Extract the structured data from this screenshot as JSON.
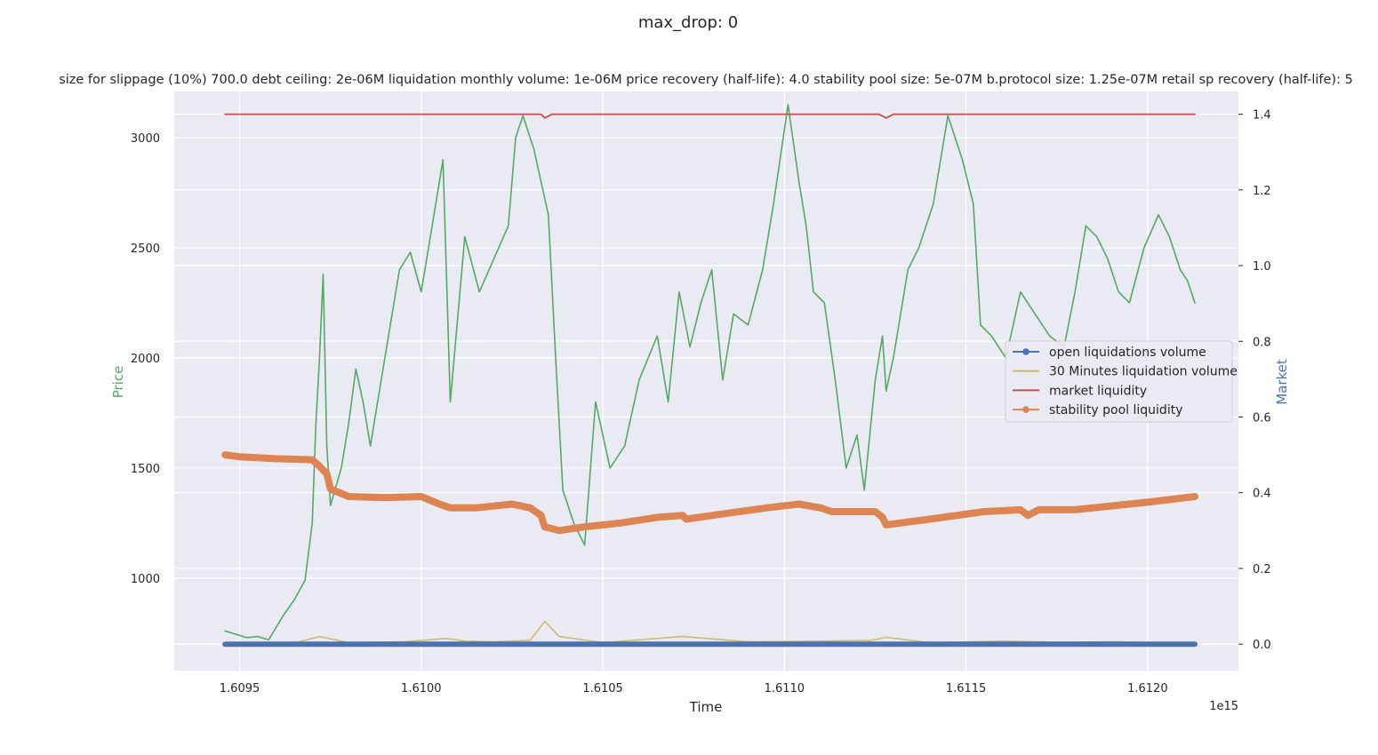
{
  "chart_data": {
    "type": "line",
    "suptitle": "max_drop: 0",
    "title": "size for slippage (10%) 700.0 debt ceiling: 2e-06M liquidation monthly volume: 1e-06M price recovery (half-life): 4.0 stability pool size: 5e-07M b.protocol size: 1.25e-07M retail sp recovery (half-life): 5",
    "xlabel": "Time",
    "x_offset_text": "1e15",
    "ylabel_left": "Price",
    "ylabel_right": "Market",
    "xlim": [
      1.60932,
      1.61225
    ],
    "ylim_left": [
      580,
      3210
    ],
    "ylim_right": [
      -0.07,
      1.46
    ],
    "x_ticks": [
      1.6095,
      1.61,
      1.6105,
      1.611,
      1.6115,
      1.612
    ],
    "x_tick_labels": [
      "1.6095",
      "1.6100",
      "1.6105",
      "1.6110",
      "1.6115",
      "1.6120"
    ],
    "y_left_ticks": [
      1000,
      1500,
      2000,
      2500,
      3000
    ],
    "y_left_tick_labels": [
      "1000",
      "1500",
      "2000",
      "2500",
      "3000"
    ],
    "y_right_ticks": [
      0.0,
      0.2,
      0.4,
      0.6,
      0.8,
      1.0,
      1.2,
      1.4
    ],
    "y_right_tick_labels": [
      "0.0",
      "0.2",
      "0.4",
      "0.6",
      "0.8",
      "1.0",
      "1.2",
      "1.4"
    ],
    "grid": true,
    "legend_placement": "center-right",
    "colors": {
      "price": "#55a868",
      "open_liq": "#4c72b0",
      "liq_30m": "#ccb974",
      "market": "#c44e52",
      "stability": "#dd8452",
      "background": "#eaeaf2",
      "grid": "#ffffff"
    },
    "legend": [
      {
        "name": "open liquidations volume",
        "color": "#4c72b0",
        "marker": true
      },
      {
        "name": "30 Minutes liquidation volume",
        "color": "#ccb974",
        "marker": false
      },
      {
        "name": "market liquidity",
        "color": "#c44e52",
        "marker": false
      },
      {
        "name": "stability pool liquidity",
        "color": "#dd8452",
        "marker": true
      }
    ],
    "series": [
      {
        "name": "price",
        "axis": "left",
        "x": [
          1.60946,
          1.60948,
          1.60952,
          1.60955,
          1.60958,
          1.60962,
          1.60965,
          1.60968,
          1.6097,
          1.60971,
          1.60972,
          1.60973,
          1.60974,
          1.60975,
          1.60978,
          1.6098,
          1.60982,
          1.60984,
          1.60986,
          1.6099,
          1.60994,
          1.60997,
          1.61,
          1.61003,
          1.61006,
          1.61008,
          1.61012,
          1.61016,
          1.6102,
          1.61024,
          1.61026,
          1.61028,
          1.61031,
          1.61035,
          1.61037,
          1.61039,
          1.61042,
          1.61045,
          1.61048,
          1.61052,
          1.61056,
          1.6106,
          1.61065,
          1.61068,
          1.61071,
          1.61074,
          1.61077,
          1.6108,
          1.61083,
          1.61086,
          1.6109,
          1.61094,
          1.61097,
          1.61101,
          1.61104,
          1.61106,
          1.61108,
          1.61111,
          1.61114,
          1.61117,
          1.6112,
          1.61122,
          1.61125,
          1.61127,
          1.61128,
          1.6113,
          1.61134,
          1.61137,
          1.61141,
          1.61145,
          1.61149,
          1.61152,
          1.61154,
          1.61157,
          1.61161,
          1.61165,
          1.61169,
          1.61173,
          1.61177,
          1.6118,
          1.61183,
          1.61186,
          1.61189,
          1.61192,
          1.61195,
          1.61199,
          1.61203,
          1.61206,
          1.61209,
          1.61211,
          1.61213
        ],
        "values": [
          760,
          750,
          730,
          735,
          720,
          830,
          900,
          990,
          1250,
          1700,
          2000,
          2380,
          1600,
          1330,
          1500,
          1700,
          1950,
          1800,
          1600,
          2000,
          2400,
          2480,
          2300,
          2600,
          2900,
          1800,
          2550,
          2300,
          2450,
          2600,
          3000,
          3100,
          2950,
          2650,
          2000,
          1400,
          1250,
          1150,
          1800,
          1500,
          1600,
          1900,
          2100,
          1800,
          2300,
          2050,
          2250,
          2400,
          1900,
          2200,
          2150,
          2400,
          2700,
          3150,
          2800,
          2600,
          2300,
          2250,
          1900,
          1500,
          1650,
          1400,
          1900,
          2100,
          1850,
          2000,
          2400,
          2500,
          2700,
          3100,
          2900,
          2700,
          2150,
          2100,
          2000,
          2300,
          2200,
          2100,
          2050,
          2300,
          2600,
          2550,
          2450,
          2300,
          2250,
          2500,
          2650,
          2550,
          2400,
          2350,
          2250
        ]
      },
      {
        "name": "open liquidations volume",
        "axis": "right",
        "x": [
          1.60946,
          1.61213
        ],
        "values": [
          0.0,
          0.0
        ]
      },
      {
        "name": "30 Minutes liquidation volume",
        "axis": "right",
        "x": [
          1.60946,
          1.60965,
          1.60972,
          1.6098,
          1.60995,
          1.61003,
          1.61007,
          1.61012,
          1.6102,
          1.6103,
          1.61034,
          1.61038,
          1.6105,
          1.61072,
          1.6109,
          1.6111,
          1.61124,
          1.61128,
          1.6114,
          1.6116,
          1.61175,
          1.61192,
          1.61213
        ],
        "values": [
          0.0,
          0.003,
          0.02,
          0.004,
          0.006,
          0.012,
          0.015,
          0.008,
          0.006,
          0.01,
          0.06,
          0.02,
          0.004,
          0.02,
          0.006,
          0.008,
          0.01,
          0.018,
          0.004,
          0.008,
          0.005,
          0.006,
          0.0
        ]
      },
      {
        "name": "market liquidity",
        "axis": "right",
        "x": [
          1.60946,
          1.61,
          1.61033,
          1.61034,
          1.61036,
          1.611,
          1.61126,
          1.61128,
          1.6113,
          1.61213
        ],
        "values": [
          1.4,
          1.4,
          1.4,
          1.39,
          1.4,
          1.4,
          1.4,
          1.39,
          1.4,
          1.4
        ]
      },
      {
        "name": "stability pool liquidity",
        "axis": "right",
        "x": [
          1.60946,
          1.6095,
          1.6096,
          1.6097,
          1.60972,
          1.60974,
          1.60975,
          1.6098,
          1.6099,
          1.61,
          1.61005,
          1.61008,
          1.61015,
          1.61025,
          1.6103,
          1.61033,
          1.61034,
          1.61038,
          1.61045,
          1.61055,
          1.61065,
          1.61072,
          1.61073,
          1.6108,
          1.61095,
          1.61104,
          1.6111,
          1.61113,
          1.61125,
          1.61127,
          1.61128,
          1.6114,
          1.61155,
          1.61165,
          1.61167,
          1.6117,
          1.6118,
          1.6119,
          1.612,
          1.61213
        ],
        "values": [
          0.5,
          0.495,
          0.49,
          0.487,
          0.47,
          0.45,
          0.41,
          0.39,
          0.387,
          0.39,
          0.37,
          0.36,
          0.36,
          0.37,
          0.36,
          0.34,
          0.31,
          0.3,
          0.31,
          0.32,
          0.335,
          0.34,
          0.33,
          0.34,
          0.36,
          0.37,
          0.36,
          0.35,
          0.35,
          0.335,
          0.315,
          0.33,
          0.35,
          0.355,
          0.34,
          0.355,
          0.355,
          0.365,
          0.375,
          0.39
        ]
      }
    ]
  }
}
